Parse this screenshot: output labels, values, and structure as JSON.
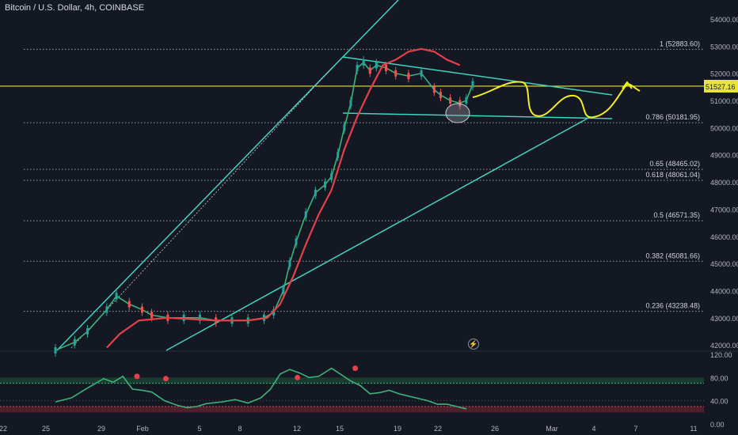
{
  "title": "Bitcoin / U.S. Dollar, 4h, COINBASE",
  "price_badge": "51527.16",
  "chart_data": {
    "type": "line",
    "y_axis_ticks": [
      "54000.00",
      "53000.00",
      "52000.00",
      "51000.00",
      "50000.00",
      "49000.00",
      "48000.00",
      "47000.00",
      "46000.00",
      "45000.00",
      "44000.00",
      "43000.00",
      "42000.00"
    ],
    "x_axis_ticks": [
      "22",
      "25",
      "29",
      "Feb",
      "5",
      "8",
      "12",
      "15",
      "19",
      "22",
      "26",
      "Mar",
      "4",
      "7",
      "11"
    ],
    "fib_levels": [
      {
        "label": "1 (52883.60)",
        "value": 52883.6
      },
      {
        "label": "0.786 (50181.95)",
        "value": 50181.95
      },
      {
        "label": "0.65 (48465.02)",
        "value": 48465.02
      },
      {
        "label": "0.618 (48061.04)",
        "value": 48061.04
      },
      {
        "label": "0.5 (46571.35)",
        "value": 46571.35
      },
      {
        "label": "0.382 (45081.66)",
        "value": 45081.66
      },
      {
        "label": "0.236 (43238.48)",
        "value": 43238.48
      }
    ],
    "horizontal_line": 51527.16,
    "price_series": [
      [
        0,
        41800
      ],
      [
        6,
        42100
      ],
      [
        10,
        42500
      ],
      [
        16,
        43300
      ],
      [
        19,
        43800
      ],
      [
        23,
        43500
      ],
      [
        27,
        43300
      ],
      [
        30,
        43100
      ],
      [
        35,
        43000
      ],
      [
        40,
        43000
      ],
      [
        45,
        43000
      ],
      [
        50,
        42900
      ],
      [
        55,
        42900
      ],
      [
        60,
        42900
      ],
      [
        65,
        43000
      ],
      [
        68,
        43200
      ],
      [
        71,
        44000
      ],
      [
        73,
        45000
      ],
      [
        75,
        45800
      ],
      [
        78,
        46800
      ],
      [
        81,
        47600
      ],
      [
        84,
        47900
      ],
      [
        86,
        48200
      ],
      [
        88,
        49000
      ],
      [
        90,
        50000
      ],
      [
        92,
        50900
      ],
      [
        94,
        52200
      ],
      [
        96,
        52400
      ],
      [
        98,
        52100
      ],
      [
        100,
        52300
      ],
      [
        103,
        52200
      ],
      [
        106,
        52000
      ],
      [
        110,
        51900
      ],
      [
        114,
        52000
      ],
      [
        118,
        51400
      ],
      [
        120,
        51200
      ],
      [
        123,
        51000
      ],
      [
        126,
        50900
      ],
      [
        128,
        51000
      ],
      [
        130,
        51600
      ]
    ],
    "ma_series": [
      [
        16,
        41900
      ],
      [
        20,
        42400
      ],
      [
        26,
        42900
      ],
      [
        35,
        43000
      ],
      [
        50,
        42900
      ],
      [
        60,
        42900
      ],
      [
        66,
        43000
      ],
      [
        70,
        43500
      ],
      [
        74,
        44500
      ],
      [
        78,
        45700
      ],
      [
        82,
        46800
      ],
      [
        86,
        47700
      ],
      [
        90,
        49200
      ],
      [
        94,
        50400
      ],
      [
        98,
        51400
      ],
      [
        102,
        52300
      ],
      [
        106,
        52500
      ],
      [
        110,
        52800
      ],
      [
        114,
        52900
      ],
      [
        118,
        52800
      ],
      [
        122,
        52500
      ],
      [
        126,
        52300
      ]
    ],
    "rsi": {
      "ticks": [
        "120.00",
        "80.00",
        "40.00",
        "0.00"
      ],
      "upper_band": 70,
      "lower_band": 30,
      "series": [
        [
          0,
          38
        ],
        [
          5,
          45
        ],
        [
          10,
          62
        ],
        [
          15,
          78
        ],
        [
          18,
          72
        ],
        [
          21,
          82
        ],
        [
          24,
          60
        ],
        [
          27,
          58
        ],
        [
          30,
          55
        ],
        [
          34,
          40
        ],
        [
          38,
          32
        ],
        [
          41,
          28
        ],
        [
          44,
          30
        ],
        [
          47,
          35
        ],
        [
          52,
          38
        ],
        [
          56,
          42
        ],
        [
          60,
          36
        ],
        [
          64,
          45
        ],
        [
          67,
          60
        ],
        [
          70,
          86
        ],
        [
          73,
          94
        ],
        [
          76,
          88
        ],
        [
          79,
          80
        ],
        [
          82,
          82
        ],
        [
          86,
          96
        ],
        [
          89,
          85
        ],
        [
          92,
          74
        ],
        [
          95,
          66
        ],
        [
          98,
          52
        ],
        [
          101,
          54
        ],
        [
          104,
          58
        ],
        [
          107,
          52
        ],
        [
          110,
          48
        ],
        [
          113,
          44
        ],
        [
          116,
          40
        ],
        [
          119,
          34
        ],
        [
          122,
          34
        ],
        [
          125,
          30
        ],
        [
          128,
          26
        ]
      ]
    }
  }
}
